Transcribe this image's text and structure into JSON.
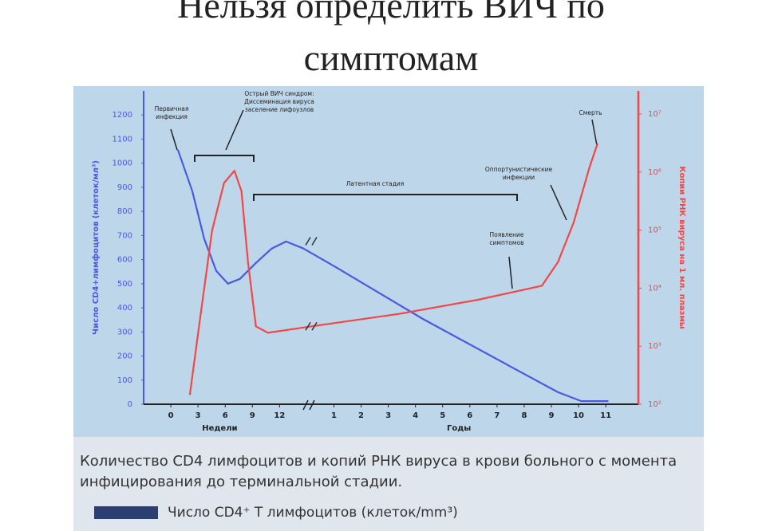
{
  "chart_data": {
    "type": "line",
    "title": "Нельзя определить ВИЧ по симптомам",
    "caption": "Количество CD4 лимфоцитов и копий РНК вируса в крови больного с момента инфицирования до терминальной стадии.",
    "ylabel": "Число CD4+лимфоцитов (клеток/мл³)",
    "y2label": "Копии РНК вируса на 1 мл. плазмы",
    "xgroups": [
      "Недели",
      "Годы"
    ],
    "xlim": [
      -1,
      17.2
    ],
    "xticks": [
      0,
      {
        "value": 1,
        "label": "3"
      },
      {
        "value": 2,
        "label": "6"
      },
      {
        "value": 3,
        "label": "9"
      },
      {
        "value": 4,
        "label": "12"
      },
      {
        "value": 6,
        "label": "1"
      },
      {
        "value": 7,
        "label": "2"
      },
      {
        "value": 8,
        "label": "3"
      },
      {
        "value": 9,
        "label": "4"
      },
      {
        "value": 10,
        "label": "5"
      },
      {
        "value": 11,
        "label": "6"
      },
      {
        "value": 12,
        "label": "7"
      },
      {
        "value": 13,
        "label": "8"
      },
      {
        "value": 14,
        "label": "9"
      },
      {
        "value": 15,
        "label": "10"
      },
      {
        "value": 16,
        "label": "11"
      }
    ],
    "ylim": [
      0,
      1300
    ],
    "yticks": [
      0,
      100,
      200,
      300,
      400,
      500,
      600,
      700,
      800,
      900,
      1000,
      1100,
      1200
    ],
    "y2lim": [
      100,
      25000000
    ],
    "y2scale": "log",
    "y2ticks": [
      {
        "value": 100,
        "label": "10²"
      },
      {
        "value": 1000,
        "label": "10³"
      },
      {
        "value": 10000,
        "label": "10⁴"
      },
      {
        "value": 100000,
        "label": "10⁵"
      },
      {
        "value": 1000000,
        "label": "10⁶"
      },
      {
        "value": 10000000,
        "label": "10⁷"
      }
    ],
    "series": [
      {
        "name": "Число CD4⁺ Т лимфоцитов (клеток/mm³)",
        "color": "#4a5ae0",
        "legend_color": "#2b3f72",
        "x": [
          0.26,
          0.79,
          1.23,
          1.67,
          2.1,
          2.54,
          3.13,
          3.71,
          4.24,
          4.88,
          6.05,
          9.27,
          12.5,
          14.24,
          15.1,
          16.1
        ],
        "values": [
          1056,
          884,
          685,
          553,
          500,
          520,
          586,
          646,
          675,
          646,
          570,
          354,
          156,
          50,
          13,
          13
        ]
      },
      {
        "color": "#f04848",
        "axis": "y2",
        "x": [
          0.7,
          1.08,
          1.52,
          1.96,
          2.34,
          2.6,
          2.84,
          3.13,
          3.57,
          5.18,
          8.39,
          11.3,
          13.65,
          14.24,
          14.82,
          15.4,
          15.7
        ],
        "values": [
          145,
          3100,
          98000,
          650000,
          1050000,
          470000,
          28000,
          2200,
          1700,
          2200,
          3600,
          6300,
          11000,
          28000,
          135000,
          1200000,
          3100000
        ]
      }
    ],
    "annotations": [
      "Первичная\nинфекция",
      "Острый ВИЧ синдром:\nДиссеминация вируса\nзаселение лифоузлов",
      "Латентная стадия",
      "Оппортунистические\nинфекции",
      "Появление\nсимптомов",
      "Смерть"
    ]
  }
}
